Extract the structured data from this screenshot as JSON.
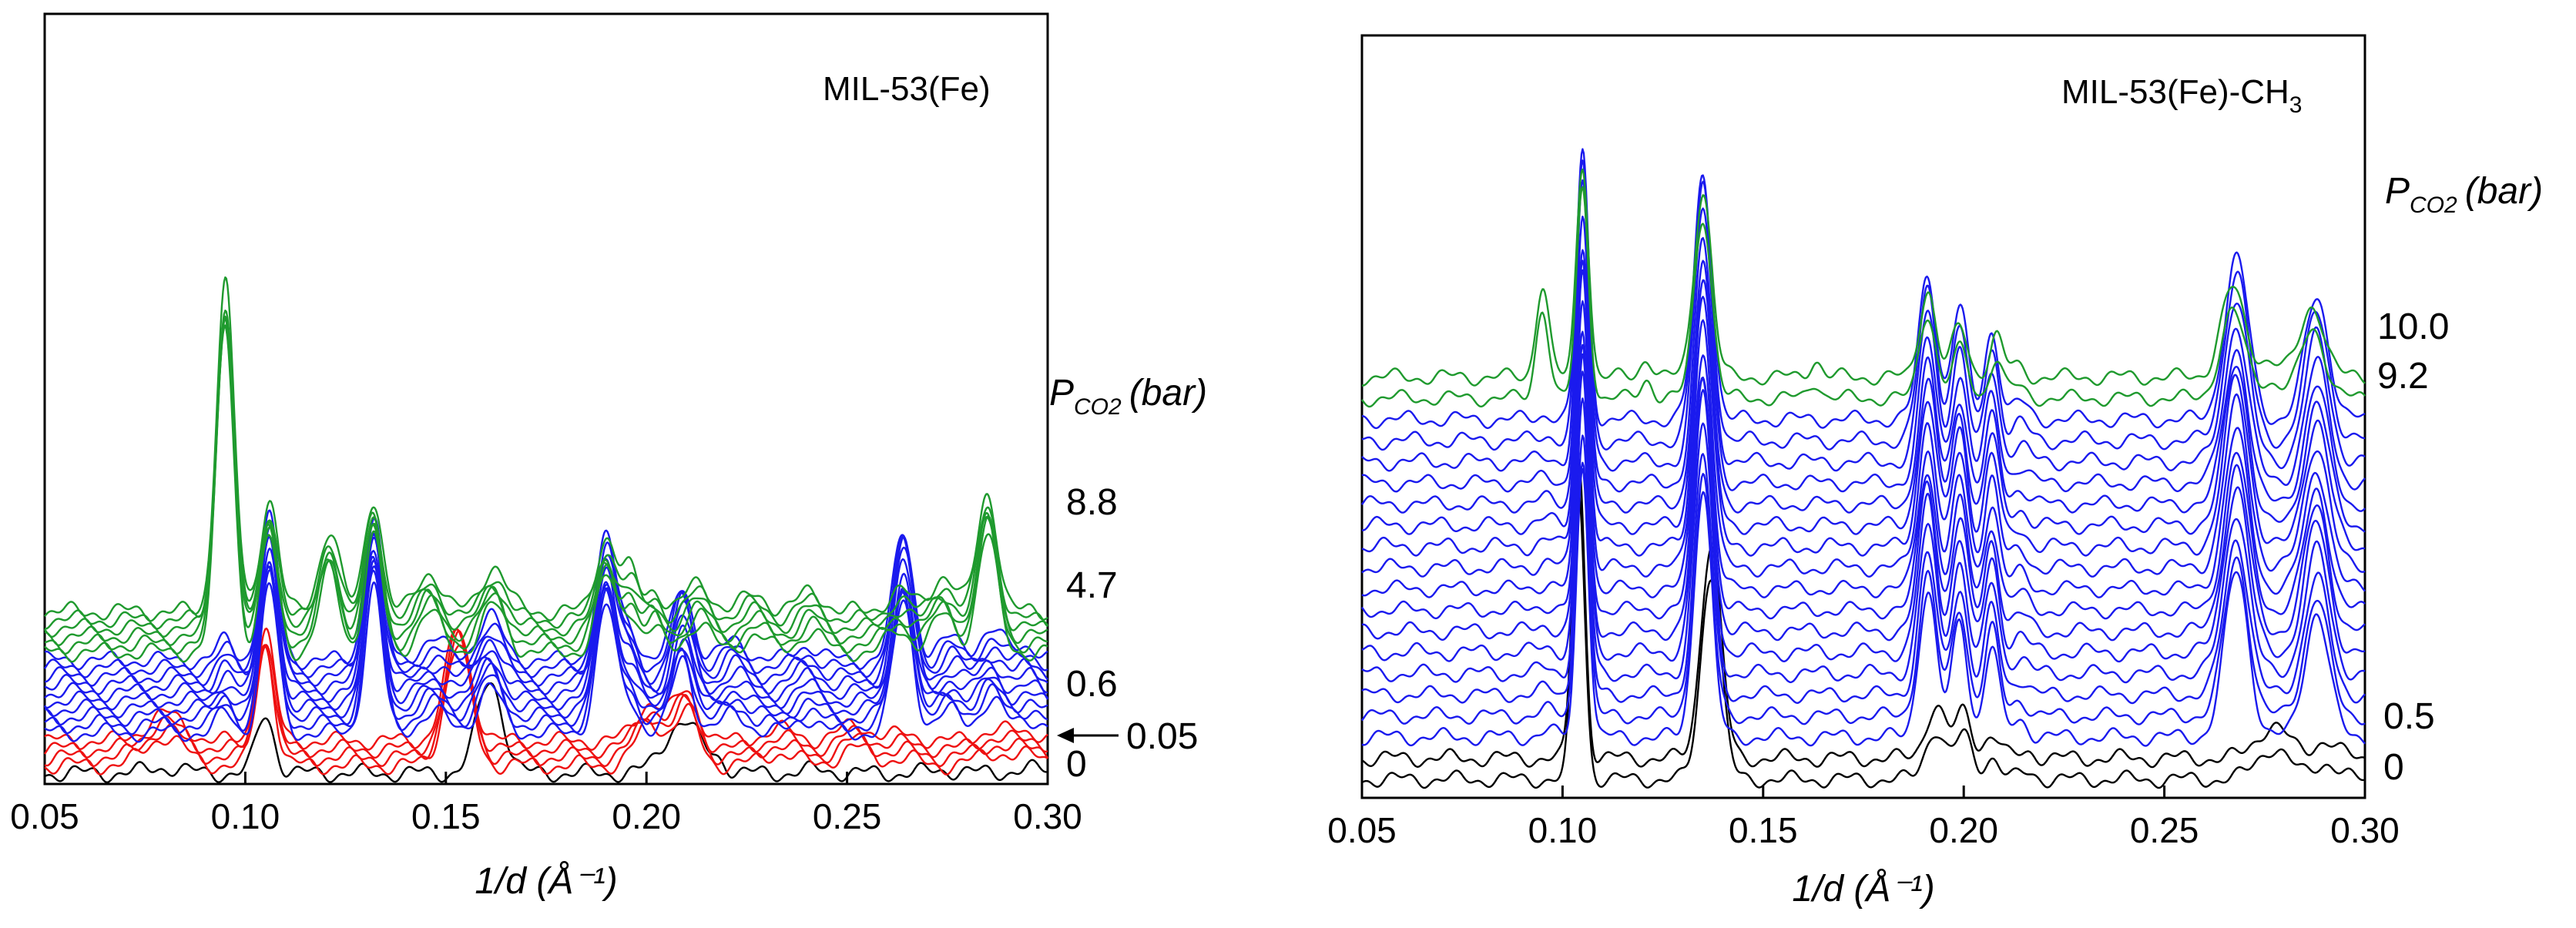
{
  "colors": {
    "baseline": "#000000",
    "stage_red": "#ee1111",
    "stage_blue": "#1a1aee",
    "stage_green": "#1f9a2e"
  },
  "chart_data": [
    {
      "type": "line",
      "panel_label": "MIL-53(Fe)",
      "xlabel": "1/d (Å⁻¹)",
      "xlim": [
        0.05,
        0.3
      ],
      "xticks": [
        "0.05",
        "0.10",
        "0.15",
        "0.20",
        "0.25",
        "0.30"
      ],
      "y_ticks_shown": false,
      "pressure_label": {
        "main": "P",
        "sub": "CO2",
        "unit": "(bar)"
      },
      "trace_labels": [
        "8.8",
        "4.7",
        "0.6",
        "0.05",
        "0"
      ],
      "arrow_label": "0.05",
      "series": [
        {
          "color": "black",
          "count": 1,
          "peaks": [
            [
              0.08,
              0.06,
              0.004
            ],
            [
              0.105,
              0.58,
              0.0022
            ],
            [
              0.161,
              0.92,
              0.0032
            ],
            [
              0.209,
              0.52,
              0.0045
            ],
            [
              0.218,
              0.1,
              0.002
            ],
            [
              0.243,
              0.03,
              0.004
            ],
            [
              0.275,
              0.03,
              0.004
            ],
            [
              0.295,
              0.04,
              0.004
            ]
          ]
        },
        {
          "color": "red",
          "count": 4,
          "peaks": [
            [
              0.08,
              0.28,
              0.0045
            ],
            [
              0.105,
              1.15,
              0.0022
            ],
            [
              0.153,
              1.15,
              0.0032
            ],
            [
              0.201,
              0.4,
              0.0035
            ],
            [
              0.21,
              0.5,
              0.003
            ],
            [
              0.233,
              0.12,
              0.004
            ],
            [
              0.252,
              0.16,
              0.004
            ],
            [
              0.264,
              0.06,
              0.004
            ],
            [
              0.287,
              0.12,
              0.004
            ],
            [
              0.297,
              0.08,
              0.004
            ]
          ]
        },
        {
          "color": "blue",
          "count": 10,
          "peaks": [
            [
              0.095,
              0.2,
              0.002
            ],
            [
              0.106,
              1.45,
              0.0022
            ],
            [
              0.132,
              1.45,
              0.0022
            ],
            [
              0.147,
              0.2,
              0.0035
            ],
            [
              0.161,
              0.45,
              0.003
            ],
            [
              0.19,
              1.25,
              0.0025
            ],
            [
              0.196,
              0.3,
              0.002
            ],
            [
              0.209,
              0.75,
              0.0025
            ],
            [
              0.222,
              0.2,
              0.003
            ],
            [
              0.24,
              0.15,
              0.003
            ],
            [
              0.264,
              1.3,
              0.0025
            ],
            [
              0.276,
              0.22,
              0.003
            ],
            [
              0.286,
              0.3,
              0.003
            ],
            [
              0.295,
              0.15,
              0.003
            ]
          ]
        },
        {
          "color": "green",
          "count": 6,
          "peaks": [
            [
              0.095,
              3.2,
              0.0022
            ],
            [
              0.106,
              1.1,
              0.0022
            ],
            [
              0.121,
              0.8,
              0.0025
            ],
            [
              0.132,
              1.1,
              0.0022
            ],
            [
              0.146,
              0.38,
              0.003
            ],
            [
              0.162,
              0.45,
              0.003
            ],
            [
              0.19,
              0.72,
              0.0025
            ],
            [
              0.196,
              0.38,
              0.002
            ],
            [
              0.202,
              0.22,
              0.002
            ],
            [
              0.213,
              0.28,
              0.003
            ],
            [
              0.227,
              0.17,
              0.003
            ],
            [
              0.241,
              0.2,
              0.003
            ],
            [
              0.263,
              0.2,
              0.003
            ],
            [
              0.274,
              0.35,
              0.003
            ],
            [
              0.285,
              1.15,
              0.0025
            ]
          ]
        }
      ]
    },
    {
      "type": "line",
      "panel_label": "MIL-53(Fe)-CH",
      "panel_label_sub": "3",
      "xlabel": "1/d (Å⁻¹)",
      "xlim": [
        0.05,
        0.3
      ],
      "xticks": [
        "0.05",
        "0.10",
        "0.15",
        "0.20",
        "0.25",
        "0.30"
      ],
      "y_ticks_shown": false,
      "pressure_label": {
        "main": "P",
        "sub": "CO2",
        "unit": "(bar)"
      },
      "trace_labels": [
        "10.0",
        "9.2",
        "0.5",
        "0"
      ],
      "series": [
        {
          "color": "black",
          "count": 2,
          "peaks": [
            [
              0.104,
              2.6,
              0.0015
            ],
            [
              0.137,
              1.85,
              0.0025
            ],
            [
              0.193,
              0.45,
              0.0025
            ],
            [
              0.2,
              0.4,
              0.002
            ],
            [
              0.207,
              0.2,
              0.002
            ],
            [
              0.216,
              0.06,
              0.002
            ],
            [
              0.277,
              0.28,
              0.004
            ],
            [
              0.29,
              0.15,
              0.003
            ]
          ]
        },
        {
          "color": "blue",
          "count": 16,
          "peaks": [
            [
              0.096,
              0.05,
              0.002
            ],
            [
              0.105,
              2.4,
              0.0015
            ],
            [
              0.135,
              2.2,
              0.0022
            ],
            [
              0.191,
              1.3,
              0.0022
            ],
            [
              0.199,
              1.0,
              0.002
            ],
            [
              0.207,
              0.8,
              0.0018
            ],
            [
              0.214,
              0.15,
              0.002
            ],
            [
              0.268,
              1.45,
              0.003
            ],
            [
              0.288,
              1.1,
              0.003
            ]
          ]
        },
        {
          "color": "green",
          "count": 2,
          "peaks": [
            [
              0.095,
              0.85,
              0.0016
            ],
            [
              0.105,
              1.95,
              0.0015
            ],
            [
              0.121,
              0.18,
              0.0015
            ],
            [
              0.135,
              1.7,
              0.0022
            ],
            [
              0.163,
              0.16,
              0.0015
            ],
            [
              0.191,
              0.8,
              0.002
            ],
            [
              0.199,
              0.45,
              0.002
            ],
            [
              0.208,
              0.38,
              0.0016
            ],
            [
              0.213,
              0.1,
              0.002
            ],
            [
              0.267,
              0.8,
              0.003
            ],
            [
              0.276,
              0.15,
              0.003
            ],
            [
              0.287,
              0.65,
              0.003
            ]
          ]
        }
      ]
    }
  ]
}
